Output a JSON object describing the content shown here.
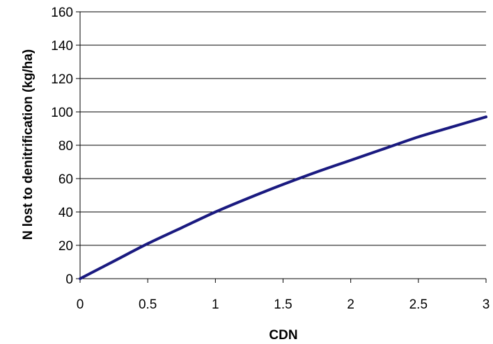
{
  "chart_data": {
    "type": "line",
    "title": "",
    "xlabel": "CDN",
    "ylabel": "N lost to denitrification (kg/ha)",
    "xlim": [
      0,
      3
    ],
    "ylim": [
      0,
      160
    ],
    "x_ticks": [
      "0",
      "0.5",
      "1",
      "1.5",
      "2",
      "2.5",
      "3"
    ],
    "y_ticks": [
      "0",
      "20",
      "40",
      "60",
      "80",
      "100",
      "120",
      "140",
      "160"
    ],
    "grid": "horizontal",
    "legend": "none",
    "series": [
      {
        "color": "#1a1a80",
        "x": [
          0,
          0.25,
          0.5,
          0.75,
          1.0,
          1.25,
          1.5,
          1.75,
          2.0,
          2.25,
          2.5,
          2.75,
          3.0
        ],
        "y": [
          0,
          10.5,
          21,
          30.5,
          40,
          48.5,
          56.5,
          64,
          71,
          78,
          85,
          91,
          97
        ]
      }
    ]
  }
}
